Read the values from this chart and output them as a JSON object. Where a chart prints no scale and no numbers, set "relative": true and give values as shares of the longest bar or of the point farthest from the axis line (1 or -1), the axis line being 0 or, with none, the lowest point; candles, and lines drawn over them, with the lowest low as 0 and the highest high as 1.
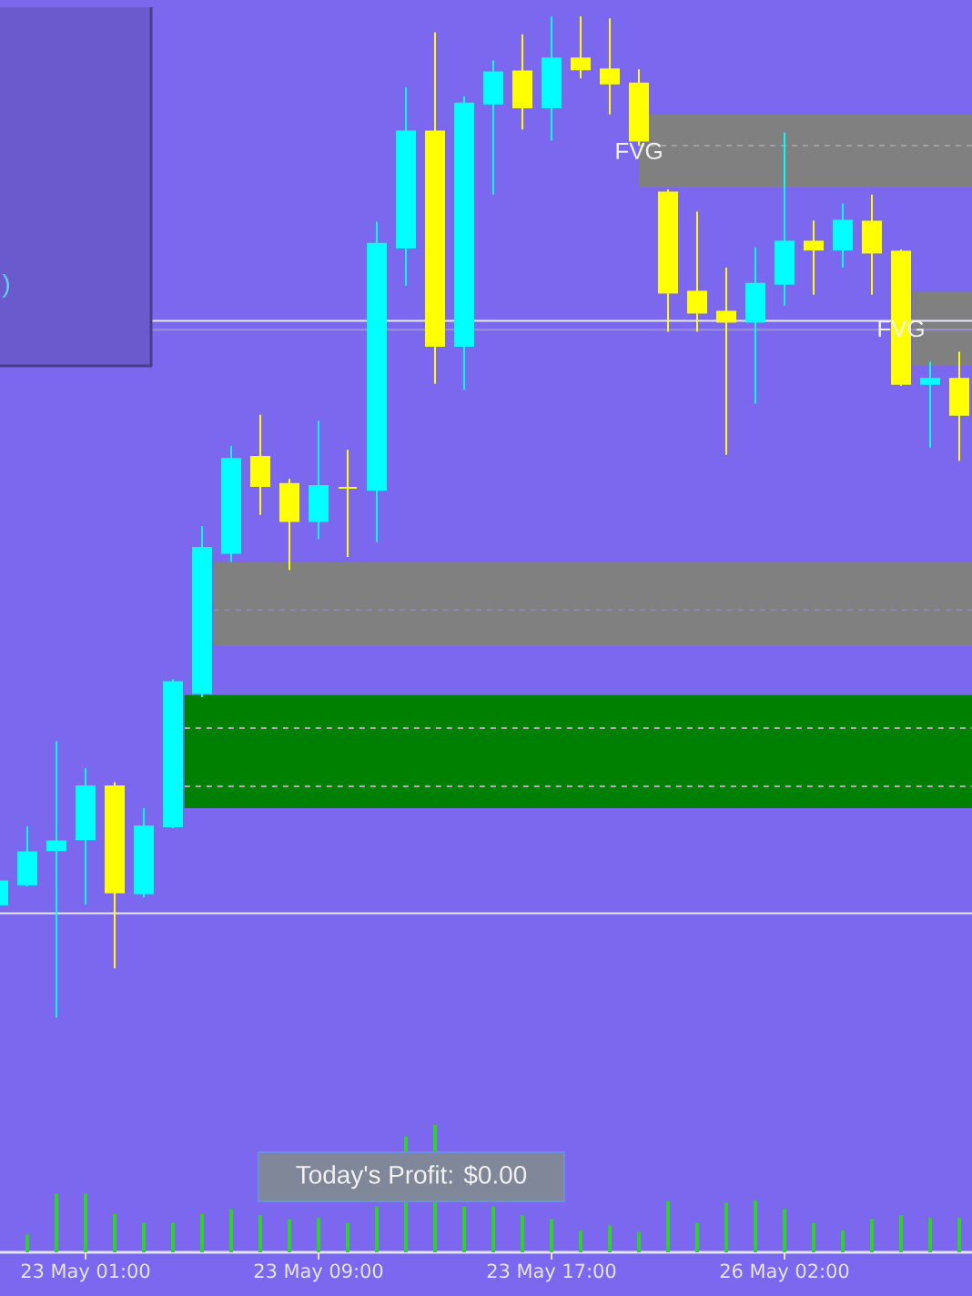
{
  "chart_data": [
    {
      "type": "candlestick",
      "relative": true,
      "tick_labels": "x",
      "categories": [
        null,
        null,
        null,
        "23 May 01:00",
        null,
        null,
        null,
        null,
        null,
        null,
        null,
        "23 May 09:00",
        null,
        null,
        null,
        null,
        null,
        null,
        null,
        "23 May 17:00",
        null,
        null,
        null,
        null,
        null,
        null,
        null,
        "26 May 02:00",
        null,
        null,
        null,
        null,
        null,
        null
      ],
      "ohlc": [
        [
          0.113,
          0.136,
          0.113,
          0.136
        ],
        [
          0.133,
          0.191,
          0.131,
          0.165
        ],
        [
          0.167,
          0.276,
          0,
          0.176
        ],
        [
          0.178,
          0.249,
          0.113,
          0.231
        ],
        [
          0.231,
          0.235,
          0.049,
          0.125
        ],
        [
          0.124,
          0.209,
          0.12,
          0.191
        ],
        [
          0.191,
          0.338,
          0.189,
          0.335
        ],
        [
          0.324,
          0.491,
          0.32,
          0.469
        ],
        [
          0.464,
          0.571,
          0.455,
          0.558
        ],
        [
          0.56,
          0.602,
          0.502,
          0.531
        ],
        [
          0.533,
          0.538,
          0.447,
          0.496
        ],
        [
          0.496,
          0.596,
          0.478,
          0.531
        ],
        [
          0.529,
          0.567,
          0.46,
          0.529
        ],
        [
          0.527,
          0.795,
          0.475,
          0.773
        ],
        [
          0.769,
          0.929,
          0.731,
          0.885
        ],
        [
          0.885,
          0.984,
          0.633,
          0.671
        ],
        [
          0.671,
          0.92,
          0.627,
          0.913
        ],
        [
          0.913,
          0.956,
          0.822,
          0.944
        ],
        [
          0.945,
          0.982,
          0.887,
          0.909
        ],
        [
          0.909,
          1,
          0.876,
          0.958
        ],
        [
          0.958,
          1,
          0.938,
          0.947
        ],
        [
          0.947,
          0.998,
          0.902,
          0.933
        ],
        [
          0.933,
          0.947,
          0.871,
          0.876
        ],
        [
          0.824,
          0.827,
          0.685,
          0.724
        ],
        [
          0.725,
          0.805,
          0.685,
          0.704
        ],
        [
          0.705,
          0.749,
          0.562,
          0.695
        ],
        [
          0.695,
          0.769,
          0.613,
          0.733
        ],
        [
          0.733,
          0.884,
          0.711,
          0.775
        ],
        [
          0.775,
          0.796,
          0.722,
          0.767
        ],
        [
          0.767,
          0.813,
          0.749,
          0.796
        ],
        [
          0.795,
          0.822,
          0.722,
          0.764
        ],
        [
          0.765,
          0.767,
          0.631,
          0.633
        ],
        [
          0.633,
          0.655,
          0.569,
          0.638
        ],
        [
          0.638,
          0.665,
          0.556,
          0.602
        ]
      ],
      "colors": [
        "#00FFFF",
        "#00FFFF",
        "#00FFFF",
        "#00FFFF",
        "#FFFF00",
        "#00FFFF",
        "#00FFFF",
        "#00FFFF",
        "#00FFFF",
        "#FFFF00",
        "#FFFF00",
        "#00FFFF",
        "#FFFF00",
        "#00FFFF",
        "#00FFFF",
        "#FFFF00",
        "#00FFFF",
        "#00FFFF",
        "#FFFF00",
        "#00FFFF",
        "#FFFF00",
        "#FFFF00",
        "#FFFF00",
        "#FFFF00",
        "#FFFF00",
        "#FFFF00",
        "#00FFFF",
        "#00FFFF",
        "#FFFF00",
        "#00FFFF",
        "#FFFF00",
        "#FFFF00",
        "#00FFFF",
        "#FFFF00"
      ],
      "bands": [
        {
          "axis": "y",
          "from": 0.829,
          "to": 0.902,
          "color": "#808080",
          "label": "FVG"
        },
        {
          "axis": "y",
          "from": 0.371,
          "to": 0.455,
          "color": "#808080"
        },
        {
          "axis": "y",
          "from": 0.209,
          "to": 0.322,
          "color": "#008000"
        },
        {
          "axis": "y",
          "from": 0.651,
          "to": 0.725,
          "color": "#808080",
          "label": "FVG"
        }
      ],
      "ref_lines": [
        {
          "axis": "y",
          "value": 0.687,
          "color": "#9A90D8"
        },
        {
          "axis": "y",
          "value": 0.696,
          "color": "#E6E6FA"
        },
        {
          "axis": "y",
          "value": 0.104,
          "color": "#E6E6FA"
        },
        {
          "axis": "y",
          "value": 0.289,
          "color": "#B0B0B0",
          "line_style": "dashed"
        },
        {
          "axis": "y",
          "value": 0.231,
          "color": "#B0B0B0",
          "line_style": "dashed"
        },
        {
          "axis": "y",
          "value": 0.871,
          "color": "#A0A0A0",
          "line_style": "dashed"
        },
        {
          "axis": "y",
          "value": 0.407,
          "color": "#8C88B0",
          "line_style": "dashed"
        }
      ],
      "annotations": [
        ")",
        "Today's Profit: $0.00"
      ]
    },
    {
      "type": "bar",
      "relative": true,
      "tick_labels": false,
      "color": "#32CD32",
      "categories": [
        null,
        null,
        null,
        null,
        null,
        null,
        null,
        null,
        null,
        null,
        null,
        null,
        null,
        null,
        null,
        null,
        null,
        null,
        null,
        null,
        null,
        null,
        null,
        null,
        null,
        null,
        null,
        null,
        null,
        null,
        null,
        null,
        null,
        null
      ],
      "values": [
        null,
        0.14,
        0.46,
        0.46,
        0.3,
        0.23,
        0.23,
        0.3,
        0.34,
        0.29,
        0.26,
        0.27,
        0.23,
        0.36,
        0.91,
        1,
        0.36,
        0.36,
        0.29,
        0.26,
        0.17,
        0.21,
        0.16,
        0.4,
        0.23,
        0.39,
        0.41,
        0.34,
        0.23,
        0.17,
        0.26,
        0.29,
        0.27,
        0.27
      ]
    }
  ]
}
